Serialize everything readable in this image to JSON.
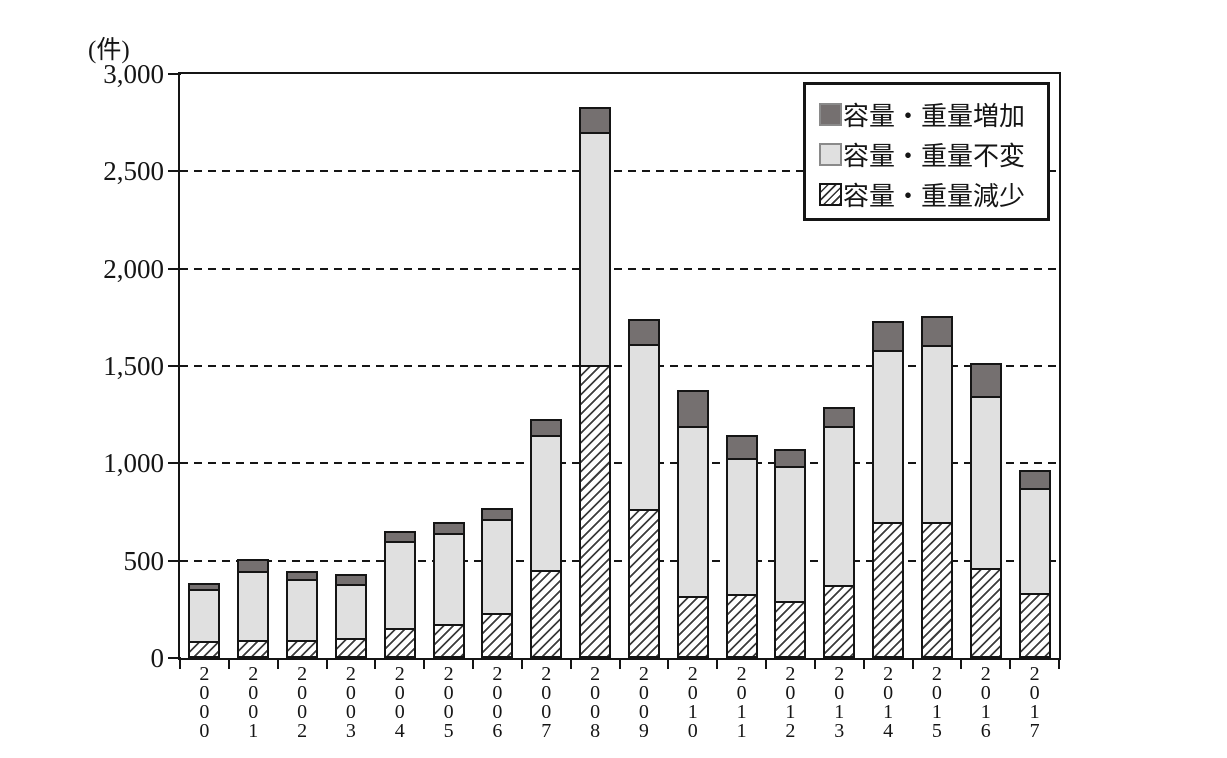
{
  "chart_data": {
    "type": "bar",
    "stacked": true,
    "unit_label": "(件)",
    "categories": [
      "2000",
      "2001",
      "2002",
      "2003",
      "2004",
      "2005",
      "2006",
      "2007",
      "2008",
      "2009",
      "2010",
      "2011",
      "2012",
      "2013",
      "2014",
      "2015",
      "2016",
      "2017"
    ],
    "series": [
      {
        "name": "容量・重量増加",
        "key": "increase",
        "style": "dark",
        "color": "#757070",
        "values": [
          40,
          70,
          50,
          60,
          60,
          65,
          65,
          95,
          140,
          140,
          195,
          130,
          100,
          110,
          160,
          160,
          180,
          105
        ]
      },
      {
        "name": "容量・重量不変",
        "key": "unchanged",
        "style": "light",
        "color": "#e0e0e0",
        "values": [
          275,
          365,
          325,
          290,
          455,
          480,
          495,
          705,
          1205,
          860,
          885,
          710,
          705,
          825,
          895,
          920,
          895,
          550
        ]
      },
      {
        "name": "容量・重量減少",
        "key": "decrease",
        "style": "hatch",
        "color": "#ffffff",
        "pattern": "diagonal-hatch",
        "values": [
          85,
          95,
          90,
          105,
          155,
          175,
          230,
          450,
          1505,
          765,
          320,
          330,
          295,
          375,
          700,
          700,
          460,
          335
        ]
      }
    ],
    "stack_order_bottom_to_top": [
      "decrease",
      "unchanged",
      "increase"
    ],
    "ylim": [
      0,
      3000
    ],
    "ytick_interval": 500,
    "ytick_labels": [
      "3,000",
      "2,500",
      "2,000",
      "1,500",
      "1,000",
      "500",
      "0"
    ],
    "grid": "dashed horizontal lines every 500",
    "legend_position": "top-right",
    "legend_entries": [
      "容量・重量増加",
      "容量・重量不変",
      "容量・重量減少"
    ],
    "border_color": "#151515"
  }
}
